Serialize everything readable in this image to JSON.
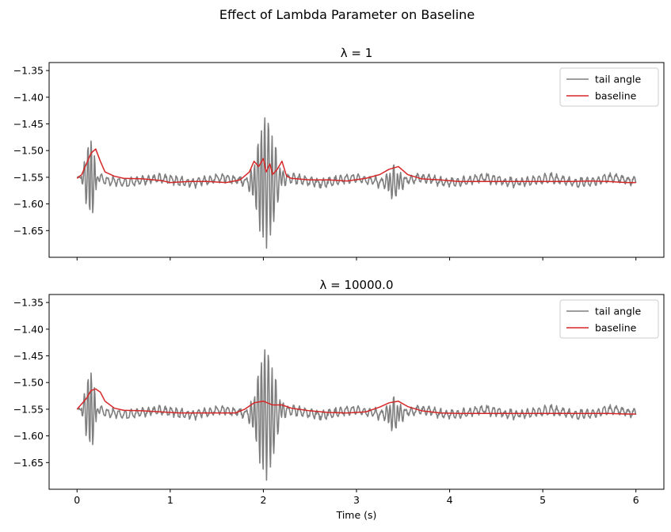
{
  "figure": {
    "title": "Effect of Lambda Parameter on Baseline"
  },
  "colors": {
    "tail_angle": "#7f7f7f",
    "baseline": "#d62728",
    "axes": "#000000"
  },
  "chart_data": [
    {
      "type": "line",
      "title": "λ = 1",
      "xlabel": "",
      "ylabel": "",
      "xlim": [
        -0.3,
        6.3
      ],
      "ylim": [
        -1.7,
        -1.335
      ],
      "xticks": [
        0,
        1,
        2,
        3,
        4,
        5,
        6
      ],
      "show_xtick_labels": false,
      "yticks": [
        -1.65,
        -1.6,
        -1.55,
        -1.5,
        -1.45,
        -1.4,
        -1.35
      ],
      "ytick_labels": [
        "−1.65",
        "−1.60",
        "−1.55",
        "−1.50",
        "−1.45",
        "−1.40",
        "−1.35"
      ],
      "grid": false,
      "legend": "top-right",
      "series": [
        {
          "name": "tail angle",
          "color": "#7f7f7f",
          "sampled": true
        },
        {
          "name": "baseline",
          "color": "#d62728",
          "x": [
            0,
            0.05,
            0.1,
            0.15,
            0.2,
            0.25,
            0.3,
            0.4,
            0.5,
            0.7,
            0.9,
            1.0,
            1.2,
            1.4,
            1.6,
            1.75,
            1.85,
            1.9,
            1.95,
            2.0,
            2.03,
            2.07,
            2.1,
            2.15,
            2.2,
            2.25,
            2.3,
            2.5,
            2.7,
            2.9,
            3.1,
            3.25,
            3.35,
            3.45,
            3.55,
            3.7,
            3.9,
            4.1,
            4.3,
            4.5,
            4.7,
            4.9,
            5.1,
            5.3,
            5.5,
            5.7,
            5.9,
            6.0
          ],
          "y": [
            -1.552,
            -1.545,
            -1.525,
            -1.505,
            -1.497,
            -1.52,
            -1.54,
            -1.548,
            -1.552,
            -1.553,
            -1.556,
            -1.56,
            -1.558,
            -1.558,
            -1.56,
            -1.555,
            -1.54,
            -1.52,
            -1.53,
            -1.515,
            -1.54,
            -1.525,
            -1.545,
            -1.535,
            -1.52,
            -1.548,
            -1.552,
            -1.555,
            -1.555,
            -1.557,
            -1.552,
            -1.545,
            -1.535,
            -1.53,
            -1.545,
            -1.553,
            -1.555,
            -1.558,
            -1.558,
            -1.558,
            -1.558,
            -1.558,
            -1.558,
            -1.558,
            -1.557,
            -1.558,
            -1.56,
            -1.56
          ]
        }
      ]
    },
    {
      "type": "line",
      "title": "λ = 10000.0",
      "xlabel": "Time (s)",
      "ylabel": "",
      "xlim": [
        -0.3,
        6.3
      ],
      "ylim": [
        -1.7,
        -1.335
      ],
      "xticks": [
        0,
        1,
        2,
        3,
        4,
        5,
        6
      ],
      "xtick_labels": [
        "0",
        "1",
        "2",
        "3",
        "4",
        "5",
        "6"
      ],
      "show_xtick_labels": true,
      "yticks": [
        -1.65,
        -1.6,
        -1.55,
        -1.5,
        -1.45,
        -1.4,
        -1.35
      ],
      "ytick_labels": [
        "−1.65",
        "−1.60",
        "−1.55",
        "−1.50",
        "−1.45",
        "−1.40",
        "−1.35"
      ],
      "grid": false,
      "legend": "top-right",
      "series": [
        {
          "name": "tail angle",
          "color": "#7f7f7f",
          "sampled": true
        },
        {
          "name": "baseline",
          "color": "#d62728",
          "x": [
            0,
            0.05,
            0.1,
            0.15,
            0.2,
            0.25,
            0.3,
            0.4,
            0.5,
            0.7,
            0.9,
            1.1,
            1.3,
            1.5,
            1.7,
            1.8,
            1.9,
            2.0,
            2.1,
            2.2,
            2.3,
            2.5,
            2.7,
            2.9,
            3.1,
            3.25,
            3.35,
            3.45,
            3.55,
            3.7,
            3.9,
            4.1,
            4.3,
            4.5,
            4.7,
            4.9,
            5.1,
            5.3,
            5.5,
            5.7,
            5.9,
            6.0
          ],
          "y": [
            -1.55,
            -1.54,
            -1.53,
            -1.515,
            -1.512,
            -1.518,
            -1.535,
            -1.548,
            -1.552,
            -1.553,
            -1.555,
            -1.557,
            -1.557,
            -1.557,
            -1.557,
            -1.55,
            -1.538,
            -1.535,
            -1.542,
            -1.542,
            -1.548,
            -1.553,
            -1.556,
            -1.557,
            -1.555,
            -1.546,
            -1.538,
            -1.535,
            -1.545,
            -1.553,
            -1.557,
            -1.558,
            -1.558,
            -1.558,
            -1.558,
            -1.558,
            -1.558,
            -1.558,
            -1.558,
            -1.558,
            -1.559,
            -1.559
          ]
        }
      ]
    }
  ]
}
